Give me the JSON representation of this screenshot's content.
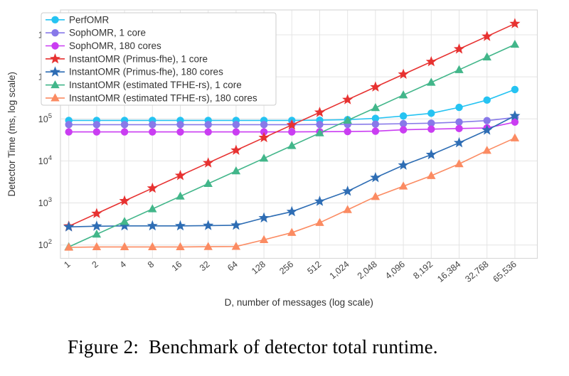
{
  "figure": {
    "caption": "Figure 2:  Benchmark of detector total runtime."
  },
  "chart_data": {
    "type": "line",
    "title": "",
    "xlabel": "D, number of messages (log scale)",
    "ylabel": "Detector Time (ms, log scale)",
    "x_scale": "log2",
    "y_scale": "log10",
    "grid": true,
    "legend_position": "top-left",
    "x_categories": [
      "1",
      "2",
      "4",
      "8",
      "16",
      "32",
      "64",
      "128",
      "256",
      "512",
      "1,024",
      "2,048",
      "4,096",
      "8,192",
      "16,384",
      "32,768",
      "65,536"
    ],
    "x_values": [
      1,
      2,
      4,
      8,
      16,
      32,
      64,
      128,
      256,
      512,
      1024,
      2048,
      4096,
      8192,
      16384,
      32768,
      65536
    ],
    "y_tick_exponents": [
      2,
      3,
      4,
      5,
      6,
      7
    ],
    "ylim": [
      48,
      39000000
    ],
    "series": [
      {
        "name": "PerfOMR",
        "color": "#25c3f2",
        "marker": "circle",
        "values": [
          92000,
          92000,
          92000,
          92000,
          92000,
          92000,
          92000,
          92000,
          92000,
          93000,
          96000,
          103000,
          117000,
          136000,
          188000,
          280000,
          500000
        ]
      },
      {
        "name": "SophOMR, 1 core",
        "color": "#8879e9",
        "marker": "circle",
        "values": [
          73000,
          73000,
          73000,
          73000,
          73000,
          73000,
          73000,
          73000,
          73000,
          73500,
          74000,
          75000,
          77000,
          79000,
          84000,
          91000,
          108000
        ]
      },
      {
        "name": "SophOMR, 180 cores",
        "color": "#ca3df2",
        "marker": "circle",
        "values": [
          49000,
          49000,
          49000,
          49000,
          49000,
          49000,
          49000,
          49000,
          49000,
          49500,
          50000,
          51000,
          55000,
          57000,
          59000,
          61000,
          84000
        ]
      },
      {
        "name": "InstantOMR (Primus-fhe), 1 core",
        "color": "#e73231",
        "marker": "star",
        "values": [
          280,
          560,
          1120,
          2240,
          4480,
          8960,
          17900,
          35800,
          71700,
          143000,
          287000,
          573000,
          1150000,
          2290000,
          4590000,
          9180000,
          18400000
        ]
      },
      {
        "name": "InstantOMR (Primus-fhe), 180 cores",
        "color": "#2e6db4",
        "marker": "star",
        "values": [
          270,
          280,
          285,
          285,
          285,
          290,
          295,
          440,
          620,
          1090,
          1900,
          4000,
          7900,
          14100,
          27000,
          54000,
          118000
        ]
      },
      {
        "name": "InstantOMR (estimated TFHE-rs), 1 core",
        "color": "#42b68a",
        "marker": "triangle-up",
        "values": [
          90,
          180,
          360,
          720,
          1440,
          2880,
          5760,
          11500,
          23000,
          46100,
          92200,
          184000,
          369000,
          737000,
          1470000,
          2950000,
          5900000
        ]
      },
      {
        "name": "InstantOMR (estimated TFHE-rs), 180 cores",
        "color": "#fb8b62",
        "marker": "triangle-up",
        "values": [
          88,
          90,
          90,
          90,
          90,
          91,
          92,
          133,
          197,
          340,
          690,
          1410,
          2500,
          4450,
          8500,
          17700,
          35000
        ]
      }
    ],
    "colors": {
      "background": "#ffffff",
      "grid": "#e4e4e4",
      "plot_border": "#d9d9d9",
      "tick_text": "#444444",
      "axis_title": "#333333",
      "legend_border": "#cccccc",
      "legend_background": "#ffffff",
      "legend_text": "#333333"
    }
  }
}
